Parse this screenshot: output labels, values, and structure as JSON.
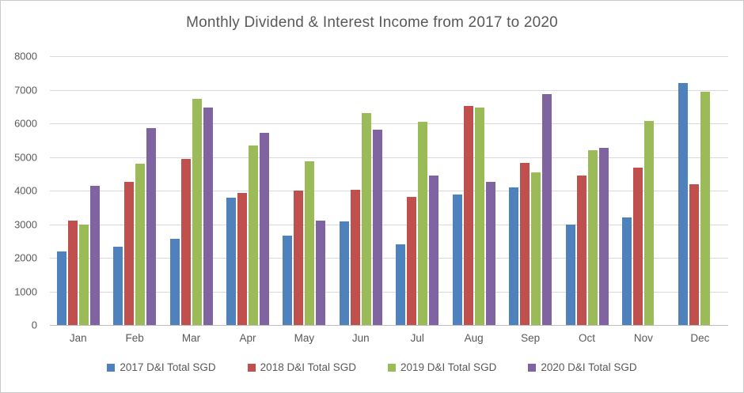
{
  "chart_data": {
    "type": "bar",
    "title": "Monthly Dividend & Interest Income from 2017 to 2020",
    "xlabel": "",
    "ylabel": "",
    "ylim": [
      0,
      8000
    ],
    "yticks": [
      0,
      1000,
      2000,
      3000,
      4000,
      5000,
      6000,
      7000,
      8000
    ],
    "grid": true,
    "legend_position": "bottom",
    "categories": [
      "Jan",
      "Feb",
      "Mar",
      "Apr",
      "May",
      "Jun",
      "Jul",
      "Aug",
      "Sep",
      "Oct",
      "Nov",
      "Dec"
    ],
    "series": [
      {
        "name": "2017 D&I Total SGD",
        "color": "#4F81BD",
        "values": [
          2200,
          2320,
          2560,
          3800,
          2670,
          3090,
          2400,
          3880,
          4090,
          2980,
          3190,
          7200
        ]
      },
      {
        "name": "2018 D&I Total SGD",
        "color": "#C0504D",
        "values": [
          3100,
          4250,
          4950,
          3930,
          4000,
          4020,
          3820,
          6510,
          4830,
          4440,
          4690,
          4180
        ]
      },
      {
        "name": "2019 D&I Total SGD",
        "color": "#9BBB59",
        "values": [
          3000,
          4800,
          6730,
          5340,
          4860,
          6300,
          6040,
          6460,
          4530,
          5190,
          6080,
          6950
        ]
      },
      {
        "name": "2020 D&I Total SGD",
        "color": "#8064A2",
        "values": [
          4150,
          5850,
          6460,
          5710,
          3100,
          5810,
          4440,
          4250,
          6880,
          5260,
          0,
          0
        ]
      }
    ],
    "colors": {
      "title_text": "#595959",
      "axis_text": "#595959",
      "gridline": "#D9D9D9",
      "axis_line": "#BFBFBF",
      "background": "#FFFFFF"
    }
  }
}
